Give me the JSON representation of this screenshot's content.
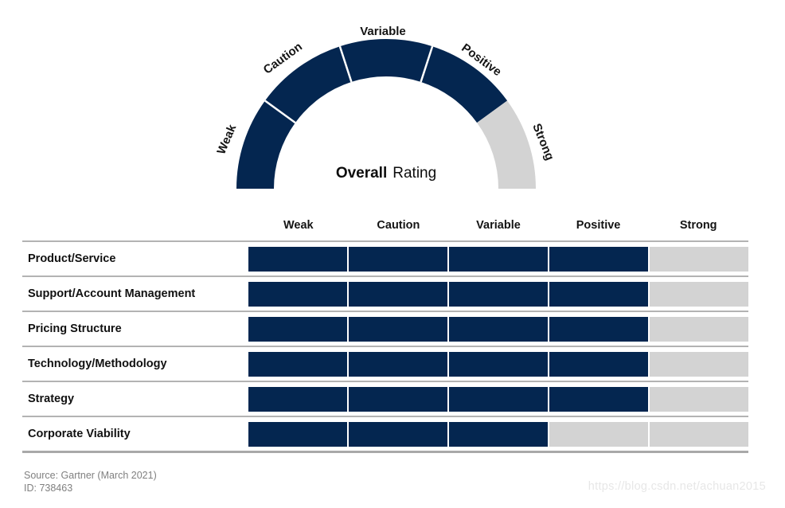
{
  "chart_data": [
    {
      "type": "gauge",
      "title_primary": "Overall",
      "title_secondary": "Rating",
      "scale": [
        "Weak",
        "Caution",
        "Variable",
        "Positive",
        "Strong"
      ],
      "value": "Positive",
      "filled_segments": 4,
      "segment_colors": [
        "#042650",
        "#042650",
        "#042650",
        "#042650",
        "#d3d3d3"
      ],
      "colors": {
        "filled": "#042650",
        "empty": "#d3d3d3",
        "divider": "#ffffff"
      },
      "layout": {
        "shape": "semicircle",
        "segments": 5,
        "labels_outside": true
      }
    },
    {
      "type": "table",
      "columns": [
        "Weak",
        "Caution",
        "Variable",
        "Positive",
        "Strong"
      ],
      "rows": [
        {
          "label": "Product/Service",
          "rating": "Positive",
          "filled_segments": 4
        },
        {
          "label": "Support/Account Management",
          "rating": "Positive",
          "filled_segments": 4
        },
        {
          "label": "Pricing Structure",
          "rating": "Positive",
          "filled_segments": 4
        },
        {
          "label": "Technology/Methodology",
          "rating": "Positive",
          "filled_segments": 4
        },
        {
          "label": "Strategy",
          "rating": "Positive",
          "filled_segments": 4
        },
        {
          "label": "Corporate Viability",
          "rating": "Variable",
          "filled_segments": 3
        }
      ],
      "colors": {
        "filled": "#042650",
        "empty": "#d3d3d3"
      }
    }
  ],
  "footer": {
    "source": "Source: Gartner (March 2021)",
    "id": "ID: 738463"
  },
  "watermark": "https://blog.csdn.net/achuan2015"
}
